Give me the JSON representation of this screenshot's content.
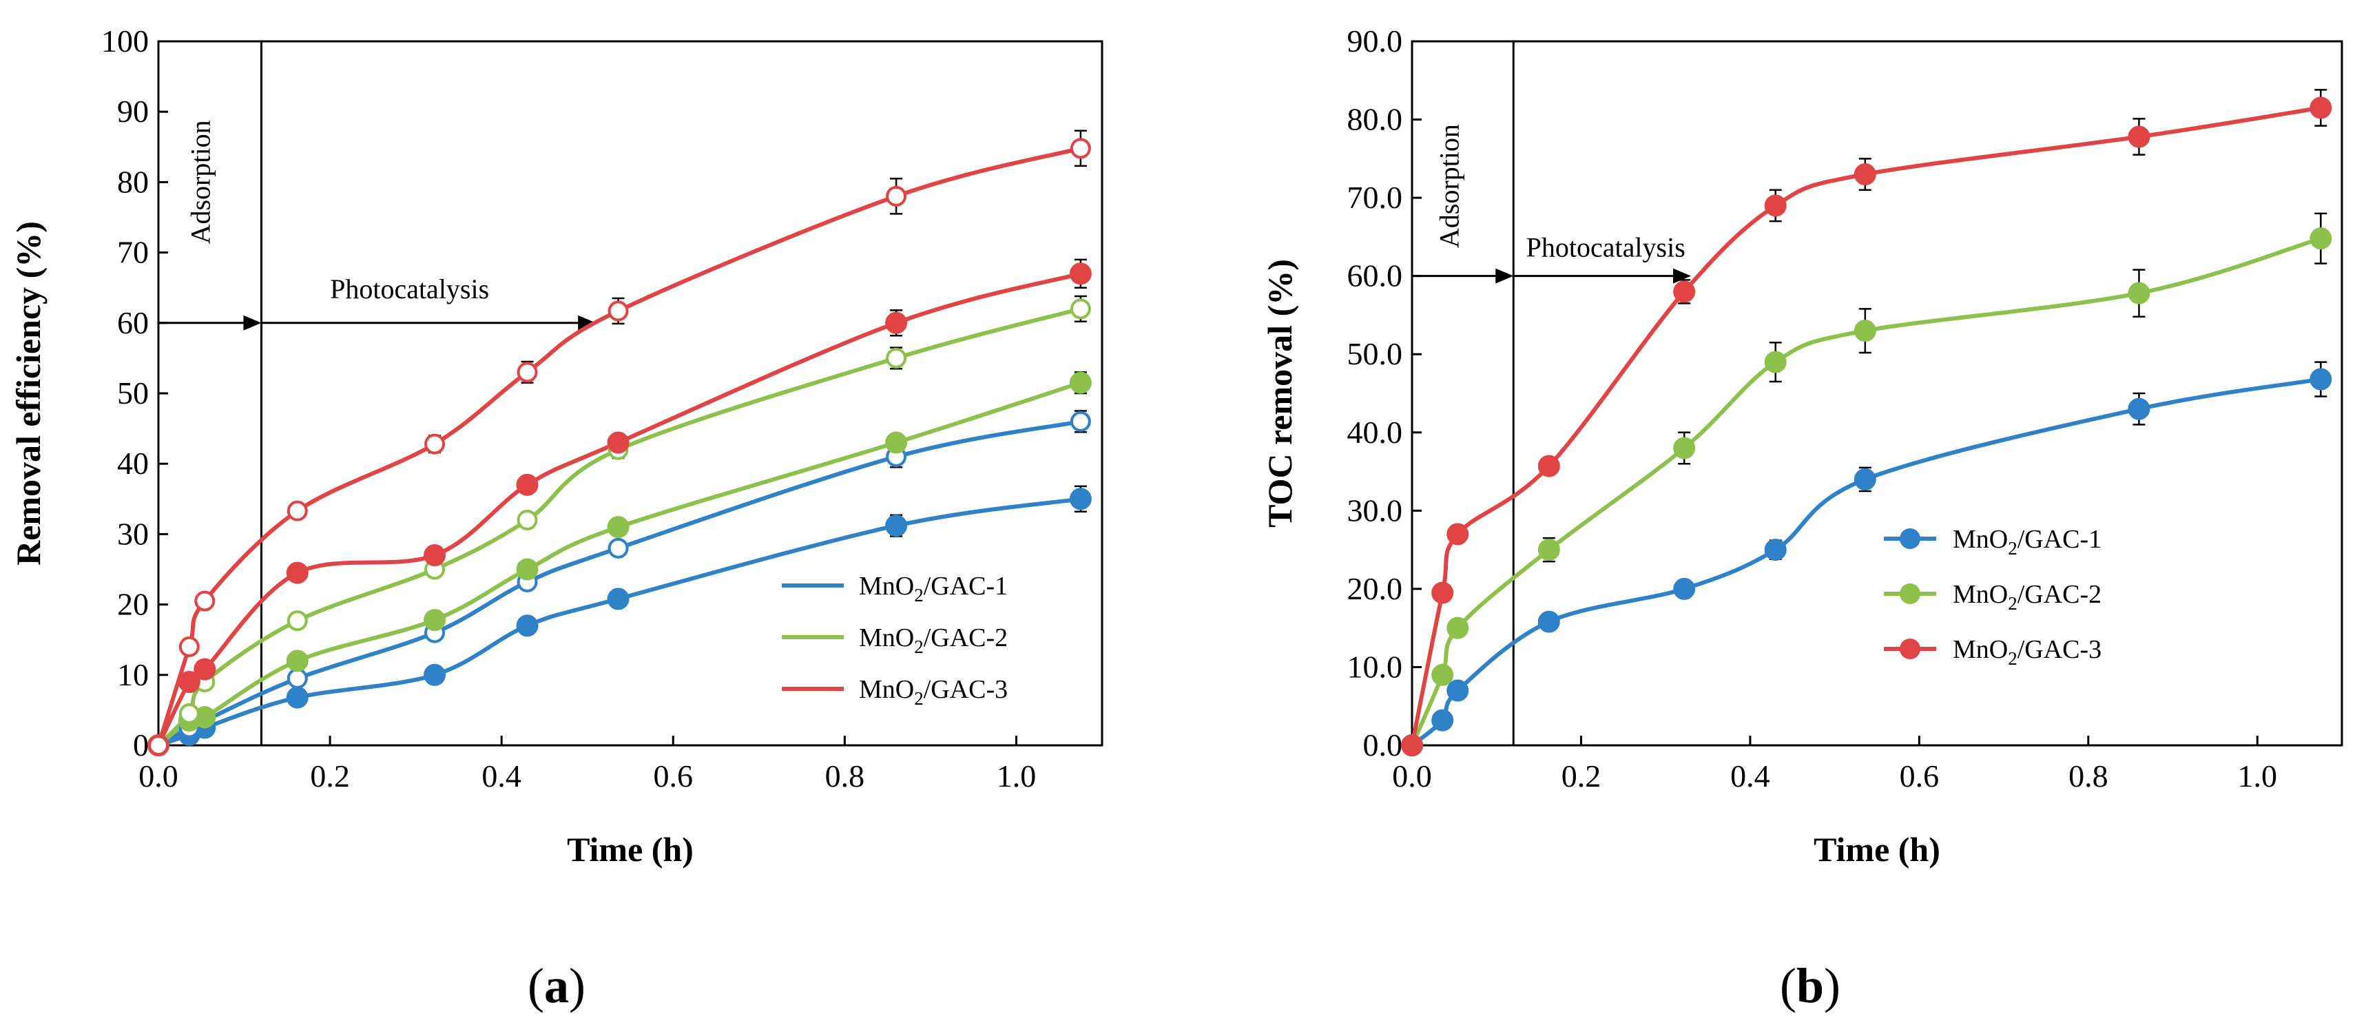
{
  "chart_data": [
    {
      "type": "line",
      "panel": "(a)",
      "xlabel": "Time (h)",
      "ylabel": "Removal efficiency (%)",
      "xlim": [
        0,
        1.1
      ],
      "ylim": [
        0,
        100
      ],
      "xticks": [
        0.0,
        0.2,
        0.4,
        0.6,
        0.8,
        1.0
      ],
      "xtick_labels": [
        "0.0",
        "0.2",
        "0.4",
        "0.6",
        "0.8",
        "1.0"
      ],
      "yticks": [
        0,
        10,
        20,
        30,
        40,
        50,
        60,
        70,
        80,
        90,
        100
      ],
      "ytick_labels": [
        "0",
        "10",
        "20",
        "30",
        "40",
        "50",
        "60",
        "70",
        "80",
        "90",
        "100"
      ],
      "adsorption_label": "Adsorption",
      "photocatalysis_label": "Photocatalysis",
      "divider_x": 0.12,
      "arrow_y": 60,
      "arrow_end_x": 0.51,
      "legend": {
        "position": "lower-right",
        "entries": [
          "MnO₂/GAC-1",
          "MnO₂/GAC-2",
          "MnO₂/GAC-3"
        ]
      },
      "x": [
        0,
        0.036,
        0.054,
        0.162,
        0.322,
        0.43,
        0.536,
        0.86,
        1.075
      ],
      "series": [
        {
          "name": "MnO₂/GAC-1 (filled)",
          "color": "#2f82c8",
          "marker": "filled",
          "legend_index": 0,
          "values": [
            0,
            1.5,
            2.5,
            6.8,
            10.0,
            17.0,
            20.8,
            31.2,
            35.0
          ],
          "errors": [
            0,
            0.5,
            0.5,
            0.8,
            0.8,
            0.8,
            0.8,
            1.5,
            1.8
          ]
        },
        {
          "name": "MnO₂/GAC-1 (open)",
          "color": "#2f82c8",
          "marker": "open",
          "values": [
            0,
            2.5,
            3.5,
            9.5,
            16.0,
            23.2,
            28.0,
            41.0,
            46.0
          ],
          "errors": [
            0,
            0.5,
            0.5,
            0.8,
            1.0,
            1.0,
            1.0,
            1.5,
            1.5
          ]
        },
        {
          "name": "MnO₂/GAC-2 (filled)",
          "color": "#8dc14b",
          "marker": "filled",
          "legend_index": 1,
          "values": [
            0,
            3.5,
            4.0,
            12.0,
            17.8,
            25.0,
            31.0,
            43.0,
            51.5
          ],
          "errors": [
            0,
            0.5,
            0.5,
            0.8,
            1.0,
            1.0,
            1.0,
            1.2,
            1.5
          ]
        },
        {
          "name": "MnO₂/GAC-2 (open)",
          "color": "#8dc14b",
          "marker": "open",
          "values": [
            0,
            4.5,
            9.0,
            17.7,
            25.0,
            32.0,
            42.0,
            55.0,
            62.0
          ],
          "errors": [
            0,
            0.5,
            0.8,
            0.8,
            1.0,
            1.0,
            1.2,
            1.5,
            1.8
          ]
        },
        {
          "name": "MnO₂/GAC-3 (filled)",
          "color": "#e04444",
          "marker": "filled",
          "legend_index": 2,
          "values": [
            0,
            9.0,
            10.8,
            24.5,
            27.0,
            37.0,
            43.0,
            60.0,
            67.0
          ],
          "errors": [
            0,
            0.8,
            0.8,
            1.0,
            1.0,
            1.0,
            1.2,
            1.8,
            2.0
          ]
        },
        {
          "name": "MnO₂/GAC-3 (open)",
          "color": "#e04444",
          "marker": "open",
          "values": [
            0,
            14.0,
            20.5,
            33.3,
            42.8,
            53.0,
            61.7,
            78.0,
            84.8
          ],
          "errors": [
            0,
            0.8,
            0.8,
            1.0,
            1.2,
            1.5,
            1.8,
            2.5,
            2.5
          ]
        }
      ]
    },
    {
      "type": "line",
      "panel": "(b)",
      "xlabel": "Time (h)",
      "ylabel": "TOC removal (%)",
      "xlim": [
        0,
        1.1
      ],
      "ylim": [
        0,
        90
      ],
      "xticks": [
        0.0,
        0.2,
        0.4,
        0.6,
        0.8,
        1.0
      ],
      "xtick_labels": [
        "0.0",
        "0.2",
        "0.4",
        "0.6",
        "0.8",
        "1.0"
      ],
      "yticks": [
        0,
        10,
        20,
        30,
        40,
        50,
        60,
        70,
        80,
        90
      ],
      "ytick_labels": [
        "0.0",
        "10.0",
        "20.0",
        "30.0",
        "40.0",
        "50.0",
        "60.0",
        "70.0",
        "80.0",
        "90.0"
      ],
      "adsorption_label": "Adsorption",
      "photocatalysis_label": "Photocatalysis",
      "divider_x": 0.12,
      "arrow_y": 60,
      "arrow_end_x": 0.33,
      "legend": {
        "position": "middle-right",
        "entries": [
          "MnO₂/GAC-1",
          "MnO₂/GAC-2",
          "MnO₂/GAC-3"
        ]
      },
      "x": [
        0,
        0.036,
        0.054,
        0.162,
        0.322,
        0.43,
        0.536,
        0.86,
        1.075
      ],
      "series": [
        {
          "name": "MnO₂/GAC-1",
          "color": "#2f82c8",
          "marker": "filled",
          "legend_index": 0,
          "values": [
            0,
            3.2,
            7.0,
            15.8,
            20.0,
            25.0,
            34.0,
            43.0,
            46.8
          ],
          "errors": [
            0,
            0.5,
            0.5,
            1.0,
            1.0,
            1.2,
            1.5,
            2.0,
            2.2
          ]
        },
        {
          "name": "MnO₂/GAC-2",
          "color": "#8dc14b",
          "marker": "filled",
          "legend_index": 1,
          "values": [
            0,
            9.0,
            15.0,
            25.0,
            38.0,
            49.0,
            53.0,
            57.8,
            64.8
          ],
          "errors": [
            0,
            0.5,
            0.5,
            1.5,
            2.0,
            2.5,
            2.8,
            3.0,
            3.2
          ]
        },
        {
          "name": "MnO₂/GAC-3",
          "color": "#e04444",
          "marker": "filled",
          "legend_index": 2,
          "values": [
            0,
            19.5,
            27.0,
            35.7,
            58.0,
            69.0,
            73.0,
            77.8,
            81.5
          ],
          "errors": [
            0,
            0.5,
            0.5,
            1.0,
            1.5,
            2.0,
            2.0,
            2.3,
            2.3
          ]
        }
      ]
    }
  ]
}
